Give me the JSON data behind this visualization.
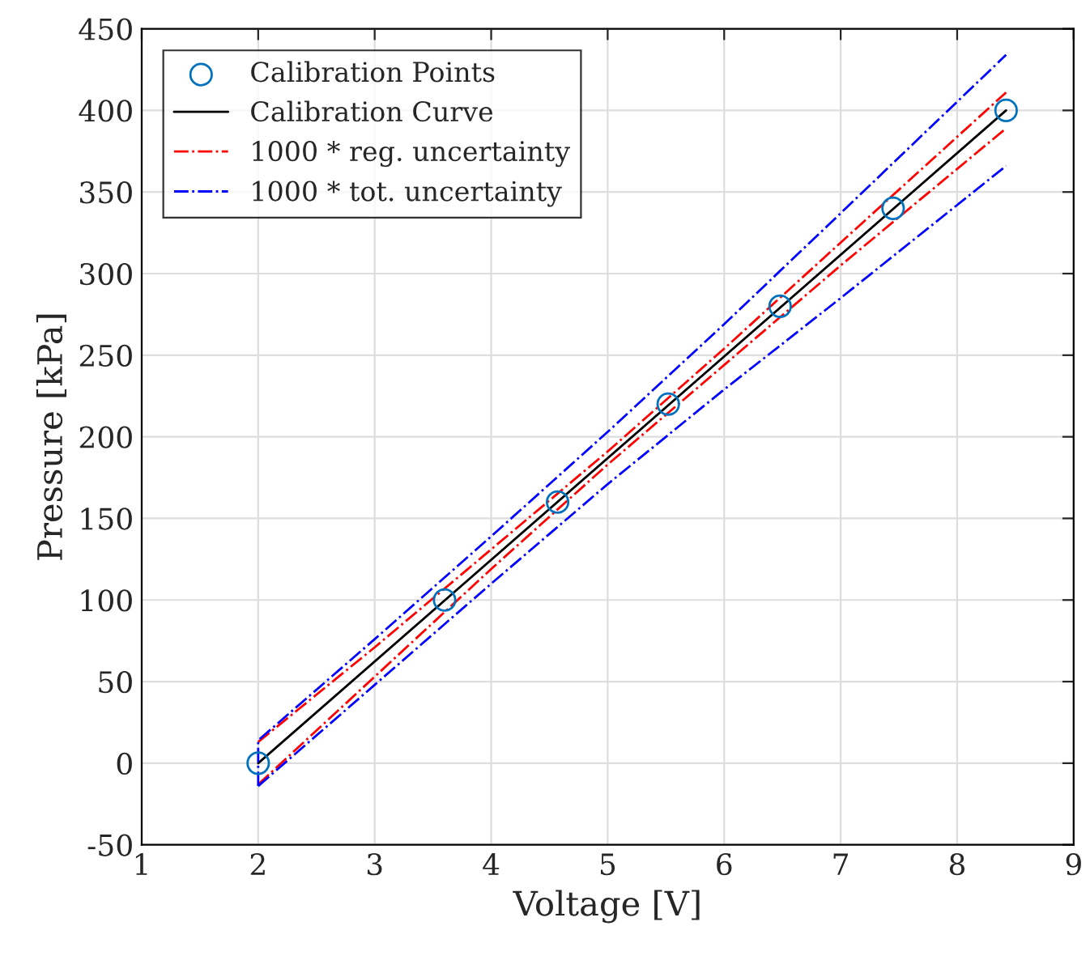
{
  "chart_data": {
    "type": "line",
    "xlabel": "Voltage [V]",
    "ylabel": "Pressure [kPa]",
    "xlim": [
      1,
      9
    ],
    "xticks": [
      1,
      2,
      3,
      4,
      5,
      6,
      7,
      8,
      9
    ],
    "ylim": [
      -50,
      450
    ],
    "yticks": [
      -50,
      0,
      50,
      100,
      150,
      200,
      250,
      300,
      350,
      400,
      450
    ],
    "grid": true,
    "legend": "top left",
    "series": [
      {
        "name": "Calibration Points",
        "type": "scatter",
        "marker": "circle",
        "color": "#0072bd",
        "x": [
          2,
          3.6,
          4.57,
          5.52,
          6.48,
          7.45,
          8.42
        ],
        "values": [
          0,
          100,
          160,
          220,
          280,
          340,
          400
        ]
      },
      {
        "name": "Calibration Curve",
        "line_style": "solid",
        "color": "#000000",
        "x": [
          2,
          8.42
        ],
        "values": [
          0,
          400
        ]
      },
      {
        "name": "1000 * reg. uncertainty",
        "line_style": "dashdot",
        "color": "#ff0000",
        "x": [
          2,
          3,
          4,
          5,
          6,
          7,
          8.42
        ],
        "values": [
          13,
          71,
          131,
          191,
          254,
          319,
          411
        ]
      },
      {
        "line_style": "dashdot",
        "color": "#ff0000",
        "x": [
          2,
          3,
          4,
          5,
          6,
          7,
          8.42
        ],
        "values": [
          -13,
          53,
          119,
          183,
          244,
          305,
          389
        ]
      },
      {
        "name": "1000 * tot. uncertainty",
        "line_style": "dashdot",
        "color": "#0000ff",
        "x": [
          2,
          2,
          3,
          4,
          5,
          6,
          7,
          8.42
        ],
        "values": [
          -14,
          14,
          76,
          139,
          203,
          269,
          337,
          434
        ]
      },
      {
        "line_style": "dashdot",
        "color": "#0000ff",
        "x": [
          2,
          3,
          4,
          5,
          6,
          7,
          8.42
        ],
        "values": [
          -14,
          48,
          110,
          171,
          229,
          285,
          366
        ]
      }
    ]
  }
}
